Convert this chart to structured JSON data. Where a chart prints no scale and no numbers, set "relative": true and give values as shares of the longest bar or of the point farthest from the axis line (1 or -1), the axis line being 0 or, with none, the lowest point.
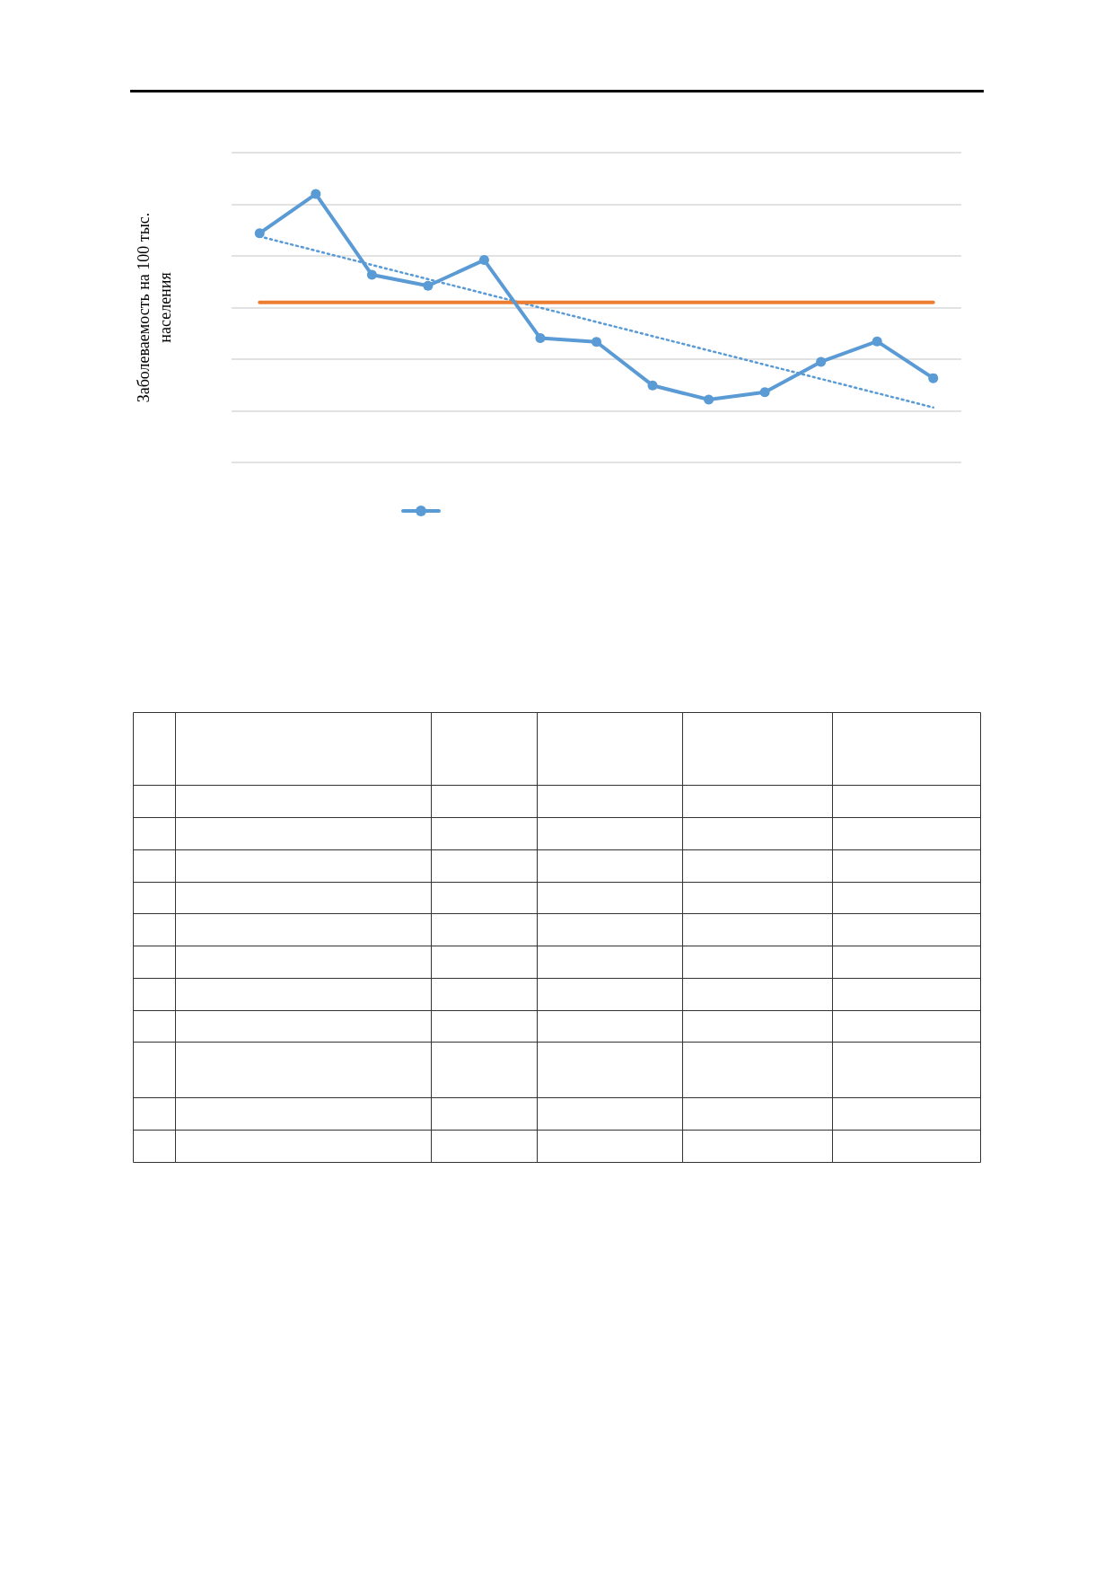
{
  "chart_data": {
    "type": "line",
    "relative": true,
    "ylabel": "Заболеваемость на 100 тыс. населения",
    "categories": [
      null,
      null,
      null,
      null,
      null,
      null,
      null,
      null,
      null,
      null,
      null,
      null,
      null
    ],
    "grid": "y",
    "series": [
      {
        "color": "#5b9bd5",
        "marker": "circle",
        "line_style": "solid",
        "values": [
          0.854,
          1,
          0.699,
          0.658,
          0.754,
          0.463,
          0.449,
          0.287,
          0.234,
          0.262,
          0.375,
          0.451,
          0.314
        ]
      },
      {
        "color": "#ed7d31",
        "marker": "none",
        "line_style": "solid",
        "values": [
          0.596,
          0.596,
          0.596,
          0.596,
          0.596,
          0.596,
          0.596,
          0.596,
          0.596,
          0.596,
          0.596,
          0.596,
          0.596
        ]
      },
      {
        "color": "#5b9bd5",
        "marker": "none",
        "line_style": "dotted",
        "values": [
          0.842,
          null,
          null,
          null,
          null,
          null,
          null,
          null,
          null,
          null,
          null,
          null,
          0.205
        ]
      }
    ]
  }
}
